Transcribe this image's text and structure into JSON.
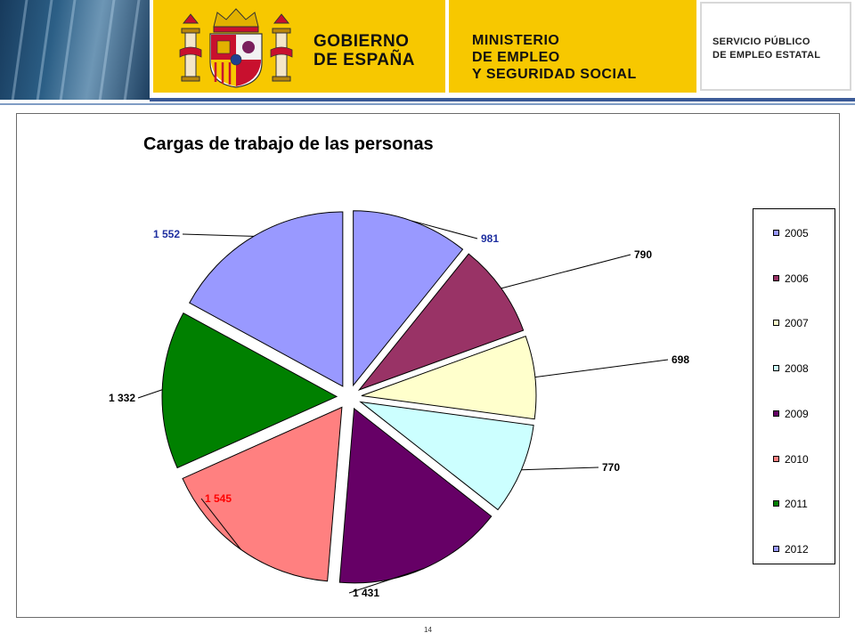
{
  "header": {
    "gobierno_line1": "GOBIERNO",
    "gobierno_line2": "DE ESPAÑA",
    "ministerio_line1": "MINISTERIO",
    "ministerio_line2": "DE EMPLEO",
    "ministerio_line3": "Y SEGURIDAD SOCIAL",
    "sepe_line1": "SERVICIO PÚBLICO",
    "sepe_line2": "DE EMPLEO ESTATAL"
  },
  "chart_data": {
    "type": "pie",
    "title": "Cargas de trabajo de las personas",
    "categories": [
      "2005",
      "2006",
      "2007",
      "2008",
      "2009",
      "2010",
      "2011",
      "2012"
    ],
    "values": [
      981,
      790,
      698,
      770,
      1431,
      1545,
      1332,
      1552
    ],
    "value_labels": [
      "981",
      "790",
      "698",
      "770",
      "1 431",
      "1 545",
      "1 332",
      "1 552"
    ],
    "colors": [
      "#9999ff",
      "#993366",
      "#ffffcc",
      "#ccffff",
      "#660066",
      "#ff8080",
      "#008000",
      "#9999ff"
    ],
    "label_colors": [
      "#1f2fa0",
      "#000000",
      "#000000",
      "#000000",
      "#000000",
      "#ff0000",
      "#000000",
      "#1f2fa0"
    ],
    "exploded": true,
    "legend": "right"
  },
  "page_number": "14"
}
